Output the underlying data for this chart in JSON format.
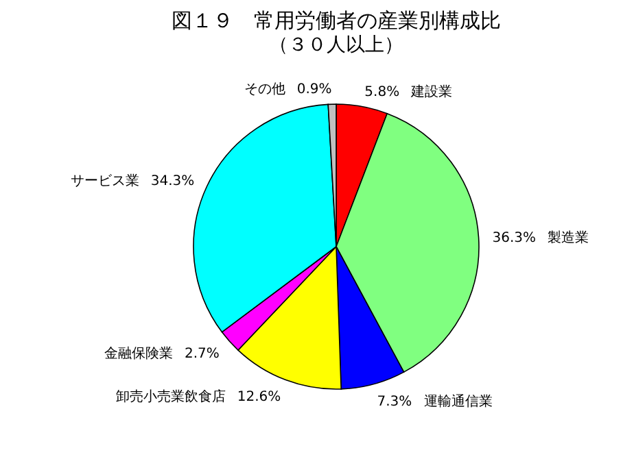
{
  "chart_data": {
    "type": "pie",
    "title": "図１９　常用労働者の産業別構成比",
    "subtitle": "（３０人以上）",
    "categories": [
      "建設業",
      "製造業",
      "運輸通信業",
      "卸売小売業飲食店",
      "金融保険業",
      "サービス業",
      "その他"
    ],
    "values": [
      5.8,
      36.3,
      7.3,
      12.6,
      2.7,
      34.3,
      0.9
    ],
    "value_labels": [
      "5.8%",
      "36.3%",
      "7.3%",
      "12.6%",
      "2.7%",
      "34.3%",
      "0.9%"
    ],
    "colors": [
      "#ff0000",
      "#80ff80",
      "#0000ff",
      "#ffff00",
      "#ff00ff",
      "#00ffff",
      "#c0c0c0"
    ]
  }
}
